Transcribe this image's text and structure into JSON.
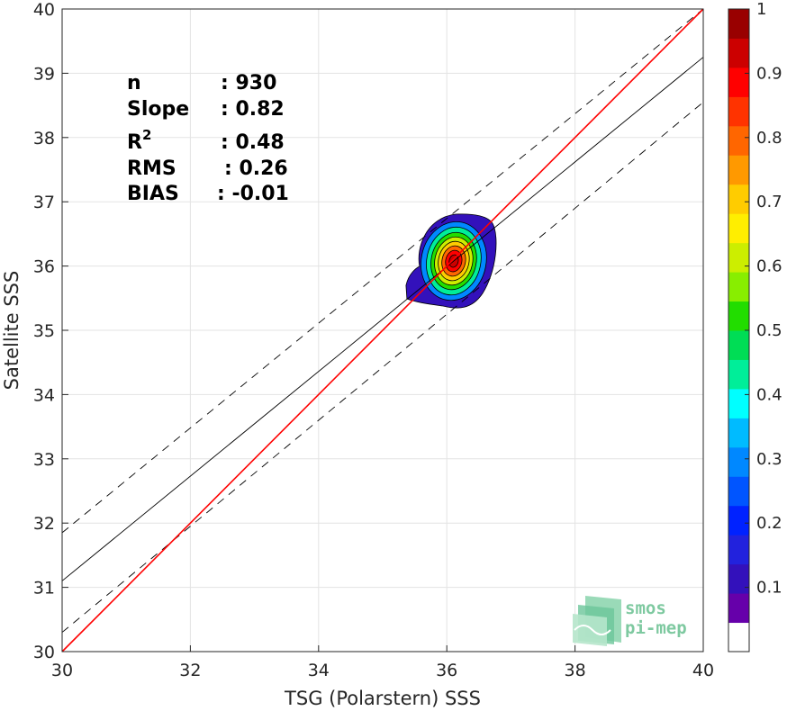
{
  "chart_data": {
    "type": "heatmap",
    "xlabel": "TSG (Polarstern) SSS",
    "ylabel": "Satellite SSS",
    "xlim": [
      30,
      40
    ],
    "ylim": [
      30,
      40
    ],
    "xticks": [
      "30",
      "32",
      "34",
      "36",
      "38",
      "40"
    ],
    "yticks": [
      "30",
      "31",
      "32",
      "33",
      "34",
      "35",
      "36",
      "37",
      "38",
      "39",
      "40"
    ],
    "grid": true,
    "stats": [
      {
        "name": "n",
        "value": ": 930"
      },
      {
        "name": "Slope",
        "value": ": 0.82"
      },
      {
        "name": "R",
        "sup": "2",
        "value": ": 0.48"
      },
      {
        "name": "RMS",
        "value": ": 0.26"
      },
      {
        "name": "BIAS",
        "value": ": -0.01"
      }
    ],
    "lines": {
      "identity": {
        "color": "#ff0000",
        "x": [
          30,
          40
        ],
        "y": [
          30,
          40
        ]
      },
      "regression": {
        "color": "#000000",
        "style": "solid",
        "x": [
          30,
          40
        ],
        "y": [
          31.1,
          39.25
        ]
      },
      "upper_bound": {
        "color": "#000000",
        "style": "dashed",
        "x": [
          30,
          40
        ],
        "y": [
          31.85,
          40.0
        ]
      },
      "lower_bound": {
        "color": "#000000",
        "style": "dashed",
        "x": [
          30,
          40
        ],
        "y": [
          30.3,
          38.55
        ]
      }
    },
    "density": {
      "center": [
        36.08,
        36.05
      ],
      "normalized_max": 1,
      "levels": [
        0.05,
        0.1,
        0.2,
        0.3,
        0.4,
        0.5,
        0.6,
        0.7,
        0.8,
        0.9
      ]
    },
    "colorbar": {
      "range": [
        0,
        1
      ],
      "ticks": [
        "0.1",
        "0.2",
        "0.3",
        "0.4",
        "0.5",
        "0.6",
        "0.7",
        "0.8",
        "0.9",
        "1"
      ],
      "colors": [
        "#ffffff",
        "#6600aa",
        "#3311bb",
        "#2222dd",
        "#0022ff",
        "#0055ff",
        "#0088ff",
        "#00bbff",
        "#00ffff",
        "#00ee99",
        "#00dd55",
        "#22dd00",
        "#88ee00",
        "#ccee00",
        "#ffee00",
        "#ffcc00",
        "#ff9900",
        "#ff6600",
        "#ff3300",
        "#ff0000",
        "#cc0000",
        "#990000"
      ]
    }
  },
  "logo": {
    "line1": "smos",
    "line2": "pi-mep"
  }
}
